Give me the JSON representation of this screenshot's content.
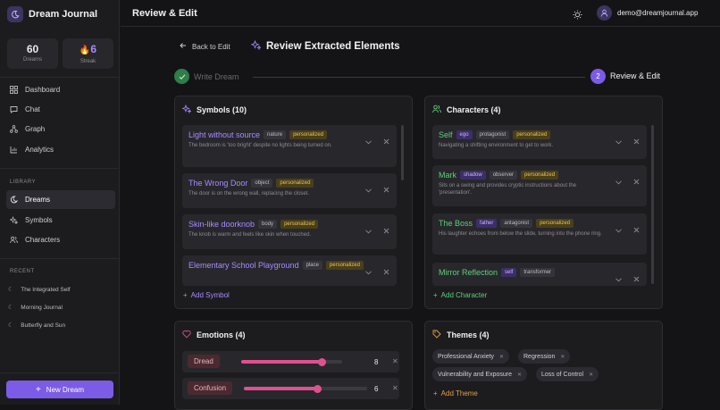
{
  "app": {
    "name": "Dream Journal"
  },
  "stats": [
    {
      "value": "60",
      "label": "Dreams"
    },
    {
      "value": "6",
      "label": "Streak"
    }
  ],
  "nav": {
    "dashboard": "Dashboard",
    "chat": "Chat",
    "graph": "Graph",
    "analytics": "Analytics",
    "library_heading": "LIBRARY",
    "dreams": "Dreams",
    "symbols": "Symbols",
    "characters": "Characters",
    "recent_heading": "RECENT"
  },
  "recent": [
    "The Integrated Self",
    "Morning Journal",
    "Butterfly and Sun"
  ],
  "new_dream": "New Dream",
  "header": {
    "title": "Review & Edit",
    "user_email": "demo@dreamjournal.app"
  },
  "page": {
    "back": "Back to Edit",
    "title": "Review Extracted Elements"
  },
  "steps": [
    {
      "label": "Write Dream"
    },
    {
      "number": "2",
      "label": "Review & Edit"
    }
  ],
  "symbols": {
    "heading": "Symbols (10)",
    "add": "Add Symbol",
    "items": [
      {
        "name": "Light without source",
        "type": "nature",
        "badge": "personalized",
        "desc": "The bedroom is 'too bright' despite no lights being turned on."
      },
      {
        "name": "The Wrong Door",
        "type": "object",
        "badge": "personalized",
        "desc": "The door is on the wrong wall, replacing the closet."
      },
      {
        "name": "Skin-like doorknob",
        "type": "body",
        "badge": "personalized",
        "desc": "The knob is warm and feels like skin when touched."
      },
      {
        "name": "Elementary School Playground",
        "type": "place",
        "badge": "personalized",
        "desc": ""
      }
    ]
  },
  "characters": {
    "heading": "Characters (4)",
    "add": "Add Character",
    "items": [
      {
        "name": "Self",
        "archetype": "ego",
        "role": "protagonist",
        "badge": "personalized",
        "desc": "Navigating a shifting environment to get to work."
      },
      {
        "name": "Mark",
        "archetype": "shadow",
        "role": "observer",
        "badge": "personalized",
        "desc": "Sits on a swing and provides cryptic instructions about the 'presentation'."
      },
      {
        "name": "The Boss",
        "archetype": "father",
        "role": "antagonist",
        "badge": "personalized",
        "desc": "His laughter echoes from below the slide, turning into the phone ring."
      },
      {
        "name": "Mirror Reflection",
        "archetype": "self",
        "role": "transformer",
        "badge": "",
        "desc": ""
      }
    ]
  },
  "emotions": {
    "heading": "Emotions (4)",
    "items": [
      {
        "label": "Dread",
        "value": 8,
        "max": 10
      },
      {
        "label": "Confusion",
        "value": 6,
        "max": 10
      }
    ]
  },
  "themes": {
    "heading": "Themes (4)",
    "add": "Add Theme",
    "items": [
      "Professional Anxiety",
      "Regression",
      "Vulnerability and Exposure",
      "Loss of Control"
    ]
  },
  "colors": {
    "accent": "#7c5ce6",
    "symbol": "#a98bff",
    "character": "#5fcf7a",
    "emotion": "#e05090",
    "theme": "#e0a040",
    "badge": "#e7c45a"
  },
  "icons": {
    "logo": "moon-icon",
    "streak": "flame-icon",
    "theme_toggle": "sun-icon",
    "avatar": "user-icon",
    "remove": "close-icon",
    "expand": "chevron-down-icon"
  }
}
